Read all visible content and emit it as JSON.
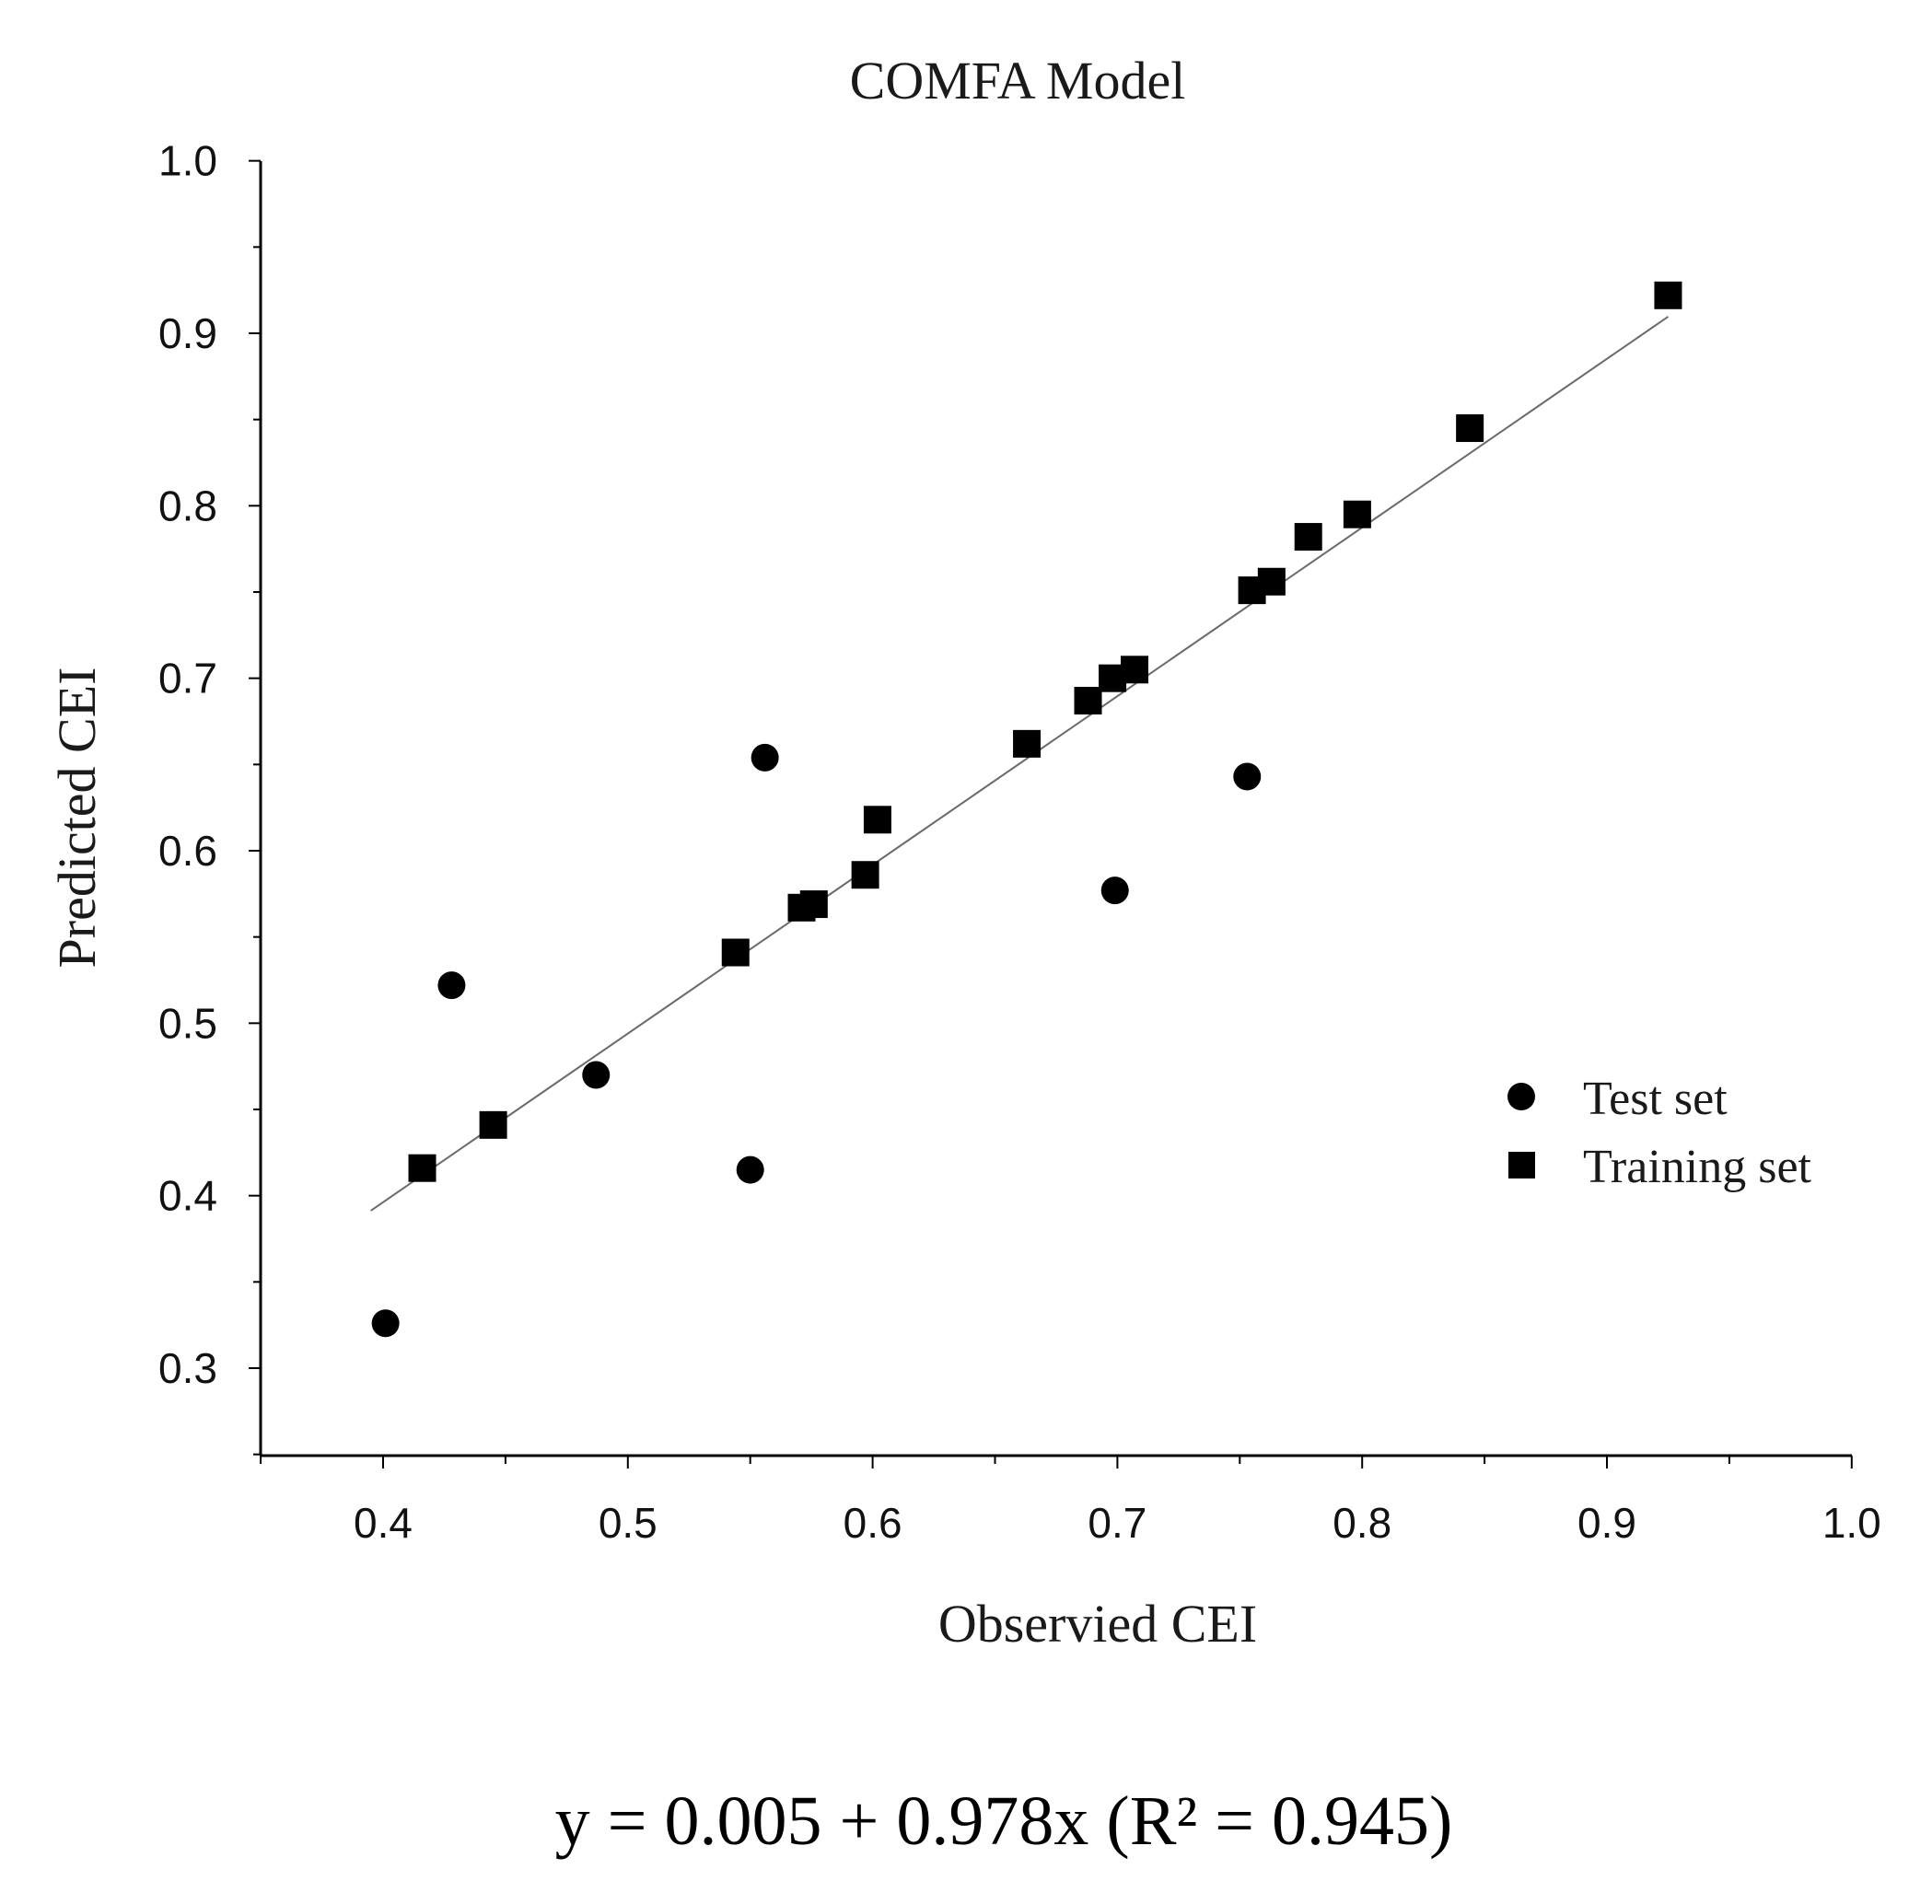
{
  "chart_data": {
    "type": "scatter",
    "title": "COMFA Model",
    "xlabel": "Observied CEI",
    "ylabel": "Predicted CEI",
    "xlim": [
      0.35,
      1.0
    ],
    "ylim": [
      0.25,
      1.0
    ],
    "x_ticks": [
      "0.4",
      "0.5",
      "0.6",
      "0.7",
      "0.8",
      "0.9",
      "1.0"
    ],
    "y_ticks": [
      "0.3",
      "0.4",
      "0.5",
      "0.6",
      "0.7",
      "0.8",
      "0.9",
      "1.0"
    ],
    "legend_position": "right",
    "series": [
      {
        "name": "Test set",
        "marker": "circle",
        "points": [
          {
            "x": 0.401,
            "y": 0.326
          },
          {
            "x": 0.428,
            "y": 0.522
          },
          {
            "x": 0.487,
            "y": 0.47
          },
          {
            "x": 0.55,
            "y": 0.415
          },
          {
            "x": 0.556,
            "y": 0.654
          },
          {
            "x": 0.699,
            "y": 0.577
          },
          {
            "x": 0.753,
            "y": 0.643
          }
        ]
      },
      {
        "name": "Training set",
        "marker": "square",
        "points": [
          {
            "x": 0.416,
            "y": 0.416
          },
          {
            "x": 0.445,
            "y": 0.441
          },
          {
            "x": 0.544,
            "y": 0.541
          },
          {
            "x": 0.571,
            "y": 0.567
          },
          {
            "x": 0.576,
            "y": 0.569
          },
          {
            "x": 0.597,
            "y": 0.586
          },
          {
            "x": 0.602,
            "y": 0.618
          },
          {
            "x": 0.663,
            "y": 0.662
          },
          {
            "x": 0.688,
            "y": 0.687
          },
          {
            "x": 0.698,
            "y": 0.7
          },
          {
            "x": 0.707,
            "y": 0.705
          },
          {
            "x": 0.755,
            "y": 0.751
          },
          {
            "x": 0.763,
            "y": 0.756
          },
          {
            "x": 0.778,
            "y": 0.782
          },
          {
            "x": 0.798,
            "y": 0.795
          },
          {
            "x": 0.844,
            "y": 0.845
          },
          {
            "x": 0.925,
            "y": 0.922
          }
        ]
      }
    ],
    "fit_line": {
      "intercept": 0.005,
      "slope": 0.978,
      "x_start": 0.395,
      "x_end": 0.925
    },
    "equation": "y = 0.005 + 0.978x (R² = 0.945)"
  }
}
